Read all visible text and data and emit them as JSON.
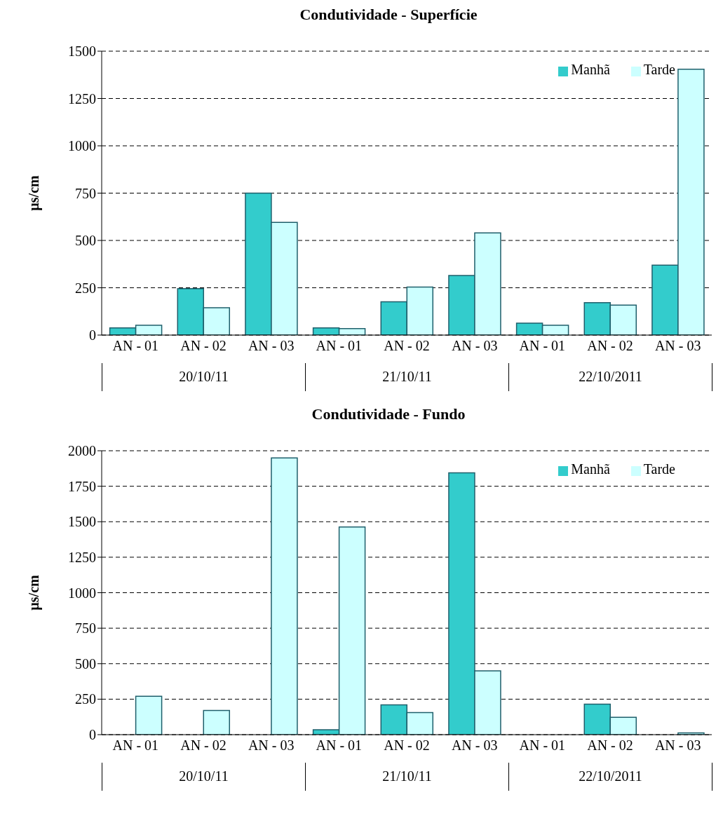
{
  "chart_data": [
    {
      "type": "bar",
      "title": "Condutividade - Superfície",
      "ylabel": "µs/cm",
      "categories": [
        "AN - 01",
        "AN - 02",
        "AN - 03",
        "AN - 01",
        "AN - 02",
        "AN - 03",
        "AN - 01",
        "AN - 02",
        "AN - 03"
      ],
      "series": [
        {
          "name": "Manhã",
          "color": "#33cccc",
          "values": [
            38,
            245,
            750,
            38,
            176,
            315,
            63,
            171,
            369
          ]
        },
        {
          "name": "Tarde",
          "color": "#ccffff",
          "values": [
            52,
            144,
            595,
            34,
            254,
            540,
            52,
            158,
            1405
          ]
        }
      ],
      "ylim": [
        0,
        1500
      ],
      "yticks": [
        0,
        250,
        500,
        750,
        1000,
        1250,
        1500
      ],
      "grid": "y",
      "legend": "top right",
      "annotations": [
        "20/10/11",
        "21/10/11",
        "22/10/2011"
      ]
    },
    {
      "type": "bar",
      "title": "Condutividade - Fundo",
      "ylabel": "µs/cm",
      "categories": [
        "AN - 01",
        "AN - 02",
        "AN - 03",
        "AN - 01",
        "AN - 02",
        "AN - 03",
        "AN - 01",
        "AN - 02",
        "AN - 03"
      ],
      "series": [
        {
          "name": "Manhã",
          "color": "#33cccc",
          "values": [
            null,
            null,
            null,
            35,
            210,
            1845,
            null,
            215,
            null
          ]
        },
        {
          "name": "Tarde",
          "color": "#ccffff",
          "values": [
            270,
            170,
            1950,
            1463,
            155,
            450,
            null,
            122,
            12
          ]
        }
      ],
      "ylim": [
        0,
        2000
      ],
      "yticks": [
        0,
        250,
        500,
        750,
        1000,
        1250,
        1500,
        1750,
        2000
      ],
      "grid": "y",
      "legend": "top right",
      "annotations": [
        "20/10/11",
        "21/10/11",
        "22/10/2011"
      ]
    }
  ]
}
